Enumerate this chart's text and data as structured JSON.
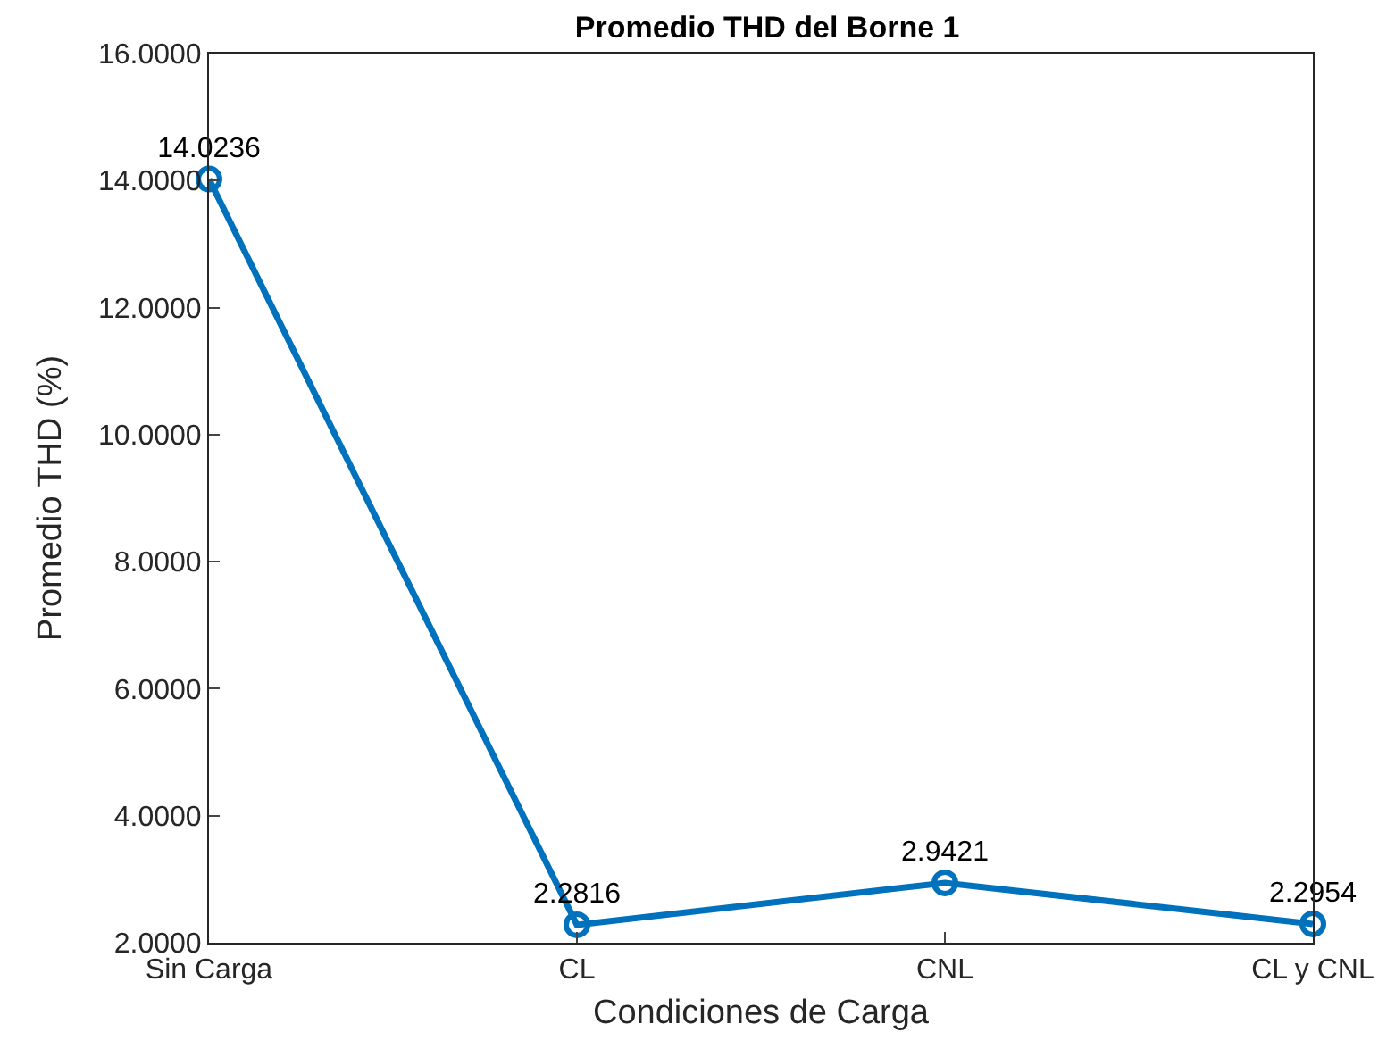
{
  "chart_data": {
    "type": "line",
    "title": "Promedio THD del Borne 1",
    "xlabel": "Condiciones de Carga",
    "ylabel": "Promedio THD (%)",
    "categories": [
      "Sin Carga",
      "CL",
      "CNL",
      "CL y CNL"
    ],
    "series": [
      {
        "color": "#0072bd",
        "values": [
          14.0236,
          2.2816,
          2.9421,
          2.2954
        ]
      }
    ],
    "ylim": [
      2,
      16
    ],
    "yticks": [
      {
        "value": 2,
        "label": "2.0000"
      },
      {
        "value": 4,
        "label": "4.0000"
      },
      {
        "value": 6,
        "label": "6.0000"
      },
      {
        "value": 8,
        "label": "8.0000"
      },
      {
        "value": 10,
        "label": "10.0000"
      },
      {
        "value": 12,
        "label": "12.0000"
      },
      {
        "value": 14,
        "label": "14.0000"
      },
      {
        "value": 16,
        "label": "16.0000"
      }
    ],
    "data_labels": true,
    "marker": "circle",
    "line_style": "solid",
    "legend": false
  }
}
